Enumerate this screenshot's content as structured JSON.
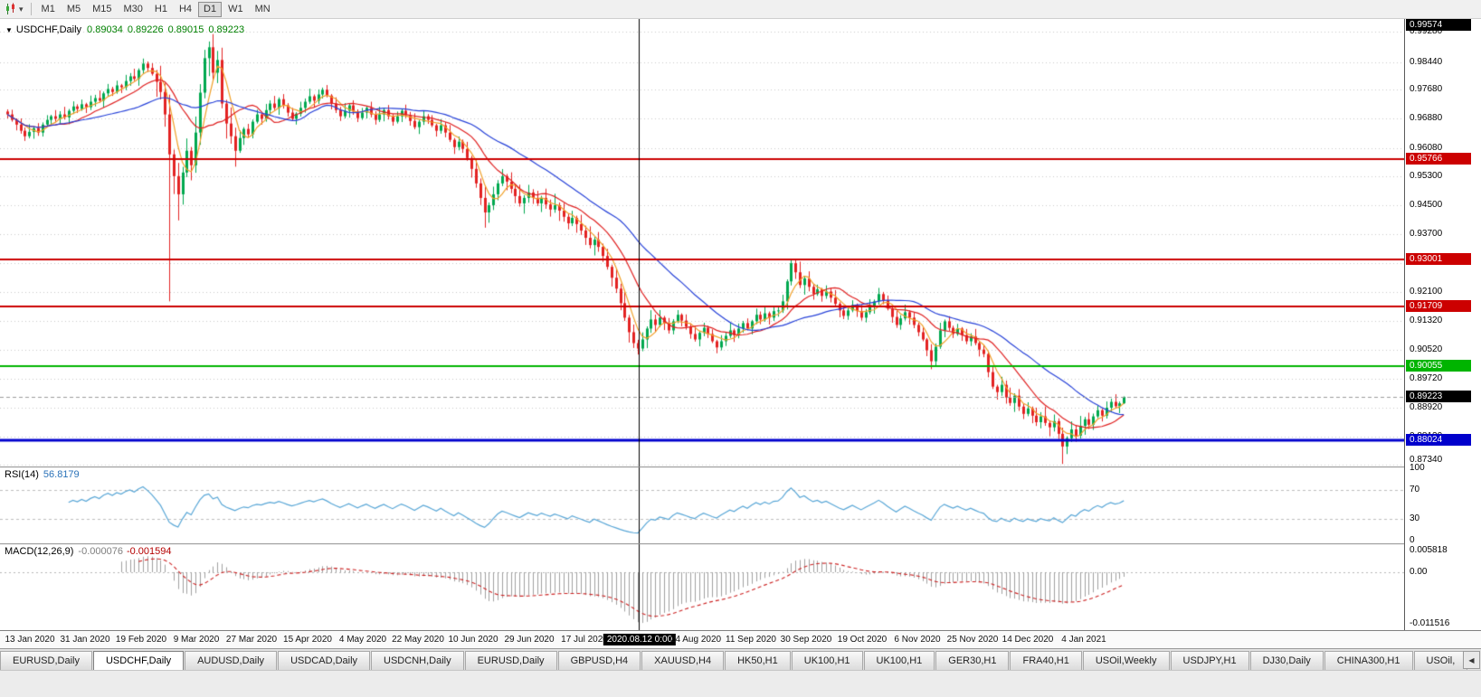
{
  "toolbar": {
    "timeframes": [
      "M1",
      "M5",
      "M15",
      "M30",
      "H1",
      "H4",
      "D1",
      "W1",
      "MN"
    ],
    "active_timeframe": "D1",
    "chart_dropdown_caret": "▾"
  },
  "chart_header": {
    "collapse_arrow": "▼",
    "symbol_label": "USDCHF,Daily",
    "open": "0.89034",
    "high": "0.89226",
    "low": "0.89015",
    "close": "0.89223"
  },
  "price_axis": {
    "top_badge": "0.99574",
    "gridline_labels": [
      "0.99280",
      "0.98440",
      "0.97680",
      "0.96880",
      "0.96080",
      "0.95300",
      "0.94500",
      "0.93700",
      "0.92900",
      "0.92100",
      "0.91320",
      "0.90520",
      "0.89720",
      "0.88920",
      "0.88120",
      "0.87340"
    ]
  },
  "current_price": {
    "value": 0.89223,
    "label": "0.89223",
    "badge_color": "#000000"
  },
  "vline": {
    "label": "2020.08.12 0:00"
  },
  "chart_data": {
    "type": "candlestick",
    "symbol": "USDCHF",
    "timeframe": "Daily",
    "price_axis_range": {
      "top": 0.9963,
      "bottom": 0.873
    },
    "x_axis_dates": [
      "13 Jan 2020",
      "31 Jan 2020",
      "19 Feb 2020",
      "9 Mar 2020",
      "27 Mar 2020",
      "15 Apr 2020",
      "4 May 2020",
      "22 May 2020",
      "10 Jun 2020",
      "29 Jun 2020",
      "17 Jul 2020",
      "2020.08.12 0:00",
      "24 Aug 2020",
      "11 Sep 2020",
      "30 Sep 2020",
      "19 Oct 2020",
      "6 Nov 2020",
      "25 Nov 2020",
      "14 Dec 2020",
      "4 Jan 2021"
    ],
    "highlighted_date_index": 11,
    "closes_pips": [
      9700,
      9685,
      9672,
      9655,
      9640,
      9652,
      9662,
      9650,
      9672,
      9685,
      9695,
      9688,
      9700,
      9692,
      9710,
      9722,
      9715,
      9728,
      9720,
      9735,
      9745,
      9738,
      9758,
      9770,
      9762,
      9780,
      9775,
      9792,
      9805,
      9798,
      9822,
      9840,
      9828,
      9812,
      9790,
      9762,
      9700,
      9590,
      9530,
      9480,
      9540,
      9600,
      9560,
      9650,
      9760,
      9855,
      9885,
      9815,
      9850,
      9730,
      9675,
      9640,
      9600,
      9635,
      9660,
      9645,
      9680,
      9700,
      9688,
      9712,
      9730,
      9718,
      9742,
      9725,
      9705,
      9688,
      9702,
      9718,
      9735,
      9750,
      9738,
      9755,
      9768,
      9752,
      9730,
      9712,
      9695,
      9710,
      9725,
      9708,
      9690,
      9705,
      9718,
      9700,
      9685,
      9700,
      9712,
      9695,
      9680,
      9695,
      9710,
      9698,
      9682,
      9665,
      9680,
      9695,
      9685,
      9670,
      9655,
      9670,
      9650,
      9630,
      9610,
      9625,
      9605,
      9580,
      9550,
      9510,
      9470,
      9430,
      9450,
      9480,
      9510,
      9530,
      9515,
      9495,
      9475,
      9455,
      9470,
      9485,
      9470,
      9455,
      9470,
      9452,
      9438,
      9450,
      9435,
      9418,
      9400,
      9415,
      9398,
      9380,
      9360,
      9340,
      9355,
      9335,
      9310,
      9280,
      9250,
      9220,
      9180,
      9140,
      9100,
      9070,
      9055,
      9080,
      9110,
      9135,
      9120,
      9140,
      9125,
      9105,
      9130,
      9148,
      9132,
      9115,
      9095,
      9080,
      9098,
      9112,
      9095,
      9075,
      9058,
      9075,
      9090,
      9105,
      9092,
      9110,
      9125,
      9110,
      9130,
      9148,
      9135,
      9152,
      9140,
      9158,
      9160,
      9185,
      9240,
      9290,
      9265,
      9230,
      9248,
      9225,
      9205,
      9218,
      9200,
      9212,
      9195,
      9178,
      9160,
      9145,
      9160,
      9175,
      9158,
      9140,
      9155,
      9170,
      9185,
      9205,
      9188,
      9165,
      9142,
      9120,
      9138,
      9155,
      9140,
      9120,
      9100,
      9080,
      9050,
      9020,
      9060,
      9105,
      9130,
      9112,
      9095,
      9110,
      9092,
      9075,
      9088,
      9070,
      9052,
      9040,
      8990,
      8950,
      8935,
      8955,
      8920,
      8905,
      8925,
      8895,
      8875,
      8890,
      8870,
      8852,
      8868,
      8850,
      8838,
      8855,
      8820,
      8785,
      8808,
      8832,
      8815,
      8842,
      8860,
      8845,
      8868,
      8885,
      8870,
      8892,
      8908,
      8896,
      8904,
      8922
    ],
    "wick_overrides": {
      "37": {
        "low": 9185
      },
      "39": {
        "low": 9408
      },
      "45": {
        "high": 9878
      },
      "46": {
        "high": 9901
      },
      "48": {
        "high": 9875
      },
      "52": {
        "low": 9556
      },
      "109": {
        "low": 9388
      },
      "179": {
        "high": 9301
      },
      "199": {
        "high": 9222
      },
      "211": {
        "low": 8998
      },
      "241": {
        "low": 8737
      },
      "255": {
        "high": 8923,
        "low": 8902
      }
    },
    "candle_up_color": "#00a84f",
    "candle_down_color": "#e32222",
    "moving_averages": [
      {
        "period": 5,
        "color": "#f0a028"
      },
      {
        "period": 13,
        "color": "#df2020"
      },
      {
        "period": 30,
        "color": "#2742d8"
      }
    ],
    "horizontal_levels": [
      {
        "price": 0.95766,
        "label": "0.95766",
        "color": "#cc0000",
        "thickness": 2
      },
      {
        "price": 0.93001,
        "label": "0.93001",
        "color": "#cc0000",
        "thickness": 2
      },
      {
        "price": 0.91709,
        "label": "0.91709",
        "color": "#cc0000",
        "thickness": 2
      },
      {
        "price": 0.90055,
        "label": "0.90055",
        "color": "#00b400",
        "thickness": 2
      },
      {
        "price": 0.88024,
        "label": "0.88024",
        "color": "#0000cc",
        "thickness": 3
      }
    ],
    "indicators": {
      "rsi": {
        "label": "RSI(14)",
        "value": "56.8179",
        "period": 14,
        "levels": [
          30,
          70
        ],
        "axis_labels": [
          "100",
          "70",
          "30",
          "0"
        ],
        "axis_values": [
          100,
          70,
          30,
          0
        ],
        "color": "#58a6d6"
      },
      "macd": {
        "label": "MACD(12,26,9)",
        "fast": 12,
        "slow": 26,
        "signal": 9,
        "value_main": "-0.000076",
        "value_signal": "-0.001594",
        "axis_labels": [
          "0.005818",
          "0.00",
          "-0.011516"
        ],
        "histogram_color": "#a0a0a0",
        "signal_color": "#cc2222"
      }
    }
  },
  "tabs": {
    "items": [
      "EURUSD,Daily",
      "USDCHF,Daily",
      "AUDUSD,Daily",
      "USDCAD,Daily",
      "USDCNH,Daily",
      "EURUSD,Daily",
      "GBPUSD,H4",
      "XAUUSD,H4",
      "HK50,H1",
      "UK100,H1",
      "UK100,H1",
      "GER30,H1",
      "FRA40,H1",
      "USOil,Weekly",
      "USDJPY,H1",
      "DJ30,Daily",
      "CHINA300,H1",
      "USOil,"
    ],
    "active_index": 1,
    "scroll_icon": "◀"
  }
}
